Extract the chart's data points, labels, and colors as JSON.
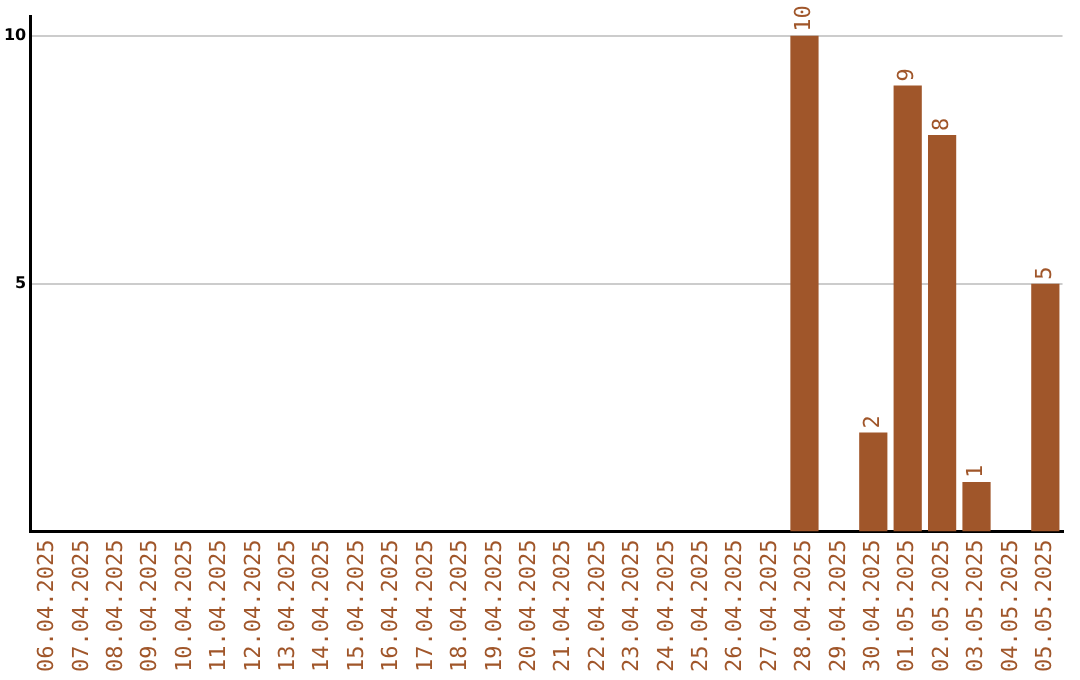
{
  "chart_data": {
    "type": "bar",
    "categories": [
      "06.04.2025",
      "07.04.2025",
      "08.04.2025",
      "09.04.2025",
      "10.04.2025",
      "11.04.2025",
      "12.04.2025",
      "13.04.2025",
      "14.04.2025",
      "15.04.2025",
      "16.04.2025",
      "17.04.2025",
      "18.04.2025",
      "19.04.2025",
      "20.04.2025",
      "21.04.2025",
      "22.04.2025",
      "23.04.2025",
      "24.04.2025",
      "25.04.2025",
      "26.04.2025",
      "27.04.2025",
      "28.04.2025",
      "29.04.2025",
      "30.04.2025",
      "01.05.2025",
      "02.05.2025",
      "03.05.2025",
      "04.05.2025",
      "05.05.2025"
    ],
    "values": [
      0,
      0,
      0,
      0,
      0,
      0,
      0,
      0,
      0,
      0,
      0,
      0,
      0,
      0,
      0,
      0,
      0,
      0,
      0,
      0,
      0,
      0,
      10,
      0,
      2,
      9,
      8,
      1,
      0,
      5
    ],
    "value_labels": [
      null,
      null,
      null,
      null,
      null,
      null,
      null,
      null,
      null,
      null,
      null,
      null,
      null,
      null,
      null,
      null,
      null,
      null,
      null,
      null,
      null,
      null,
      "10",
      null,
      "2",
      "9",
      "8",
      "1",
      null,
      "5"
    ],
    "color": "#a0562a",
    "ylim": [
      0,
      10.4
    ],
    "yticks": [
      5,
      10
    ],
    "grid": "y",
    "legend": false
  }
}
